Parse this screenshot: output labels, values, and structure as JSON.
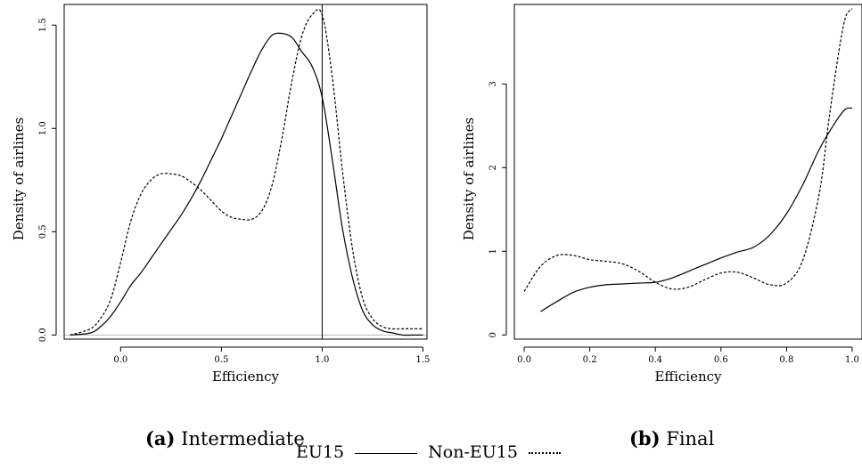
{
  "chart_data": [
    {
      "type": "line",
      "caption_label": "(a)",
      "caption_text": "Intermediate",
      "xlabel": "Efficiency",
      "ylabel": "Density of airlines",
      "xlim": [
        -0.28,
        1.52
      ],
      "ylim": [
        -0.02,
        1.6
      ],
      "xticks": [
        0.0,
        0.5,
        1.0,
        1.5
      ],
      "xtick_labels": [
        "0.0",
        "0.5",
        "1.0",
        "1.5"
      ],
      "yticks": [
        0.0,
        0.5,
        1.0,
        1.5
      ],
      "ytick_labels": [
        "0.0",
        "0.5",
        "1.0",
        "1.5"
      ],
      "reference_vline_x": 1.0,
      "reference_hline_y": 0.0,
      "grid": false,
      "series": [
        {
          "name": "EU15",
          "style": "solid",
          "x": [
            -0.25,
            -0.15,
            -0.1,
            -0.05,
            0.0,
            0.05,
            0.1,
            0.15,
            0.2,
            0.25,
            0.3,
            0.35,
            0.4,
            0.45,
            0.5,
            0.55,
            0.6,
            0.65,
            0.7,
            0.75,
            0.8,
            0.85,
            0.9,
            0.95,
            1.0,
            1.05,
            1.1,
            1.15,
            1.2,
            1.25,
            1.3,
            1.35,
            1.4,
            1.45,
            1.5
          ],
          "y": [
            0.0,
            0.01,
            0.04,
            0.09,
            0.16,
            0.24,
            0.3,
            0.37,
            0.44,
            0.51,
            0.58,
            0.66,
            0.75,
            0.85,
            0.95,
            1.06,
            1.17,
            1.28,
            1.38,
            1.45,
            1.46,
            1.44,
            1.37,
            1.3,
            1.15,
            0.85,
            0.52,
            0.28,
            0.12,
            0.05,
            0.02,
            0.01,
            0.0,
            0.0,
            0.0
          ]
        },
        {
          "name": "Non-EU15",
          "style": "dotted",
          "x": [
            -0.25,
            -0.15,
            -0.1,
            -0.05,
            0.0,
            0.05,
            0.1,
            0.15,
            0.2,
            0.25,
            0.3,
            0.35,
            0.4,
            0.45,
            0.5,
            0.55,
            0.6,
            0.65,
            0.7,
            0.75,
            0.8,
            0.85,
            0.9,
            0.95,
            1.0,
            1.05,
            1.1,
            1.15,
            1.2,
            1.25,
            1.3,
            1.35,
            1.4,
            1.45,
            1.5
          ],
          "y": [
            0.0,
            0.03,
            0.08,
            0.17,
            0.35,
            0.55,
            0.68,
            0.75,
            0.78,
            0.78,
            0.77,
            0.74,
            0.7,
            0.65,
            0.6,
            0.57,
            0.56,
            0.56,
            0.6,
            0.72,
            0.95,
            1.23,
            1.45,
            1.55,
            1.55,
            1.25,
            0.8,
            0.42,
            0.18,
            0.08,
            0.04,
            0.03,
            0.03,
            0.03,
            0.03
          ]
        }
      ]
    },
    {
      "type": "line",
      "caption_label": "(b)",
      "caption_text": "Final",
      "xlabel": "Efficiency",
      "ylabel": "Density of airlines",
      "xlim": [
        -0.03,
        1.03
      ],
      "ylim": [
        -0.05,
        3.95
      ],
      "xticks": [
        0.0,
        0.2,
        0.4,
        0.6,
        0.8,
        1.0
      ],
      "xtick_labels": [
        "0.0",
        "0.2",
        "0.4",
        "0.6",
        "0.8",
        "1.0"
      ],
      "yticks": [
        0,
        1,
        2,
        3
      ],
      "ytick_labels": [
        "0",
        "1",
        "2",
        "3"
      ],
      "grid": false,
      "series": [
        {
          "name": "EU15",
          "style": "solid",
          "x": [
            0.05,
            0.1,
            0.15,
            0.2,
            0.25,
            0.3,
            0.35,
            0.4,
            0.45,
            0.5,
            0.55,
            0.6,
            0.65,
            0.7,
            0.75,
            0.8,
            0.85,
            0.9,
            0.95,
            0.98,
            1.0
          ],
          "y": [
            0.28,
            0.4,
            0.51,
            0.57,
            0.6,
            0.61,
            0.62,
            0.63,
            0.68,
            0.76,
            0.84,
            0.92,
            0.99,
            1.05,
            1.2,
            1.45,
            1.8,
            2.22,
            2.55,
            2.7,
            2.71
          ]
        },
        {
          "name": "Non-EU15",
          "style": "dotted",
          "x": [
            0.0,
            0.05,
            0.1,
            0.15,
            0.2,
            0.25,
            0.3,
            0.35,
            0.4,
            0.45,
            0.5,
            0.55,
            0.6,
            0.65,
            0.7,
            0.75,
            0.8,
            0.85,
            0.9,
            0.93,
            0.96,
            0.98,
            1.0
          ],
          "y": [
            0.52,
            0.82,
            0.95,
            0.95,
            0.9,
            0.88,
            0.85,
            0.76,
            0.63,
            0.55,
            0.57,
            0.66,
            0.74,
            0.75,
            0.68,
            0.6,
            0.62,
            0.9,
            1.7,
            2.6,
            3.4,
            3.8,
            3.9
          ]
        }
      ]
    }
  ],
  "legend": {
    "eu15_label": "EU15",
    "non_eu15_label": "Non-EU15"
  }
}
